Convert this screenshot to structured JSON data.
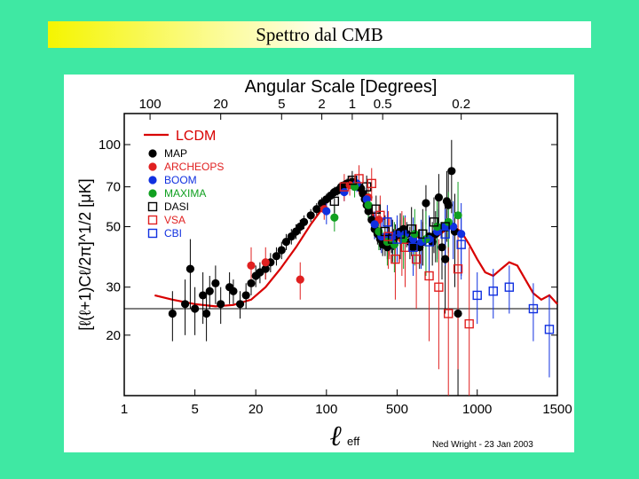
{
  "slide": {
    "title": "Spettro dal CMB"
  },
  "chart_data": {
    "type": "scatter",
    "top_axis_label": "Angular Scale [Degrees]",
    "top_ticks": [
      "100",
      "20",
      "5",
      "2",
      "1",
      "0.5",
      "0.2"
    ],
    "top_tick_l": [
      1.8,
      9,
      36,
      90,
      180,
      360,
      900
    ],
    "ylabel": "[ℓ(ℓ+1)Cℓ/2π]^1/2 [μK]",
    "xlabel_symbol": "ℓ",
    "xlabel_sub": "eff",
    "credit": "Ned Wright - 23 Jan 2003",
    "y_ticks": [
      20,
      30,
      50,
      70,
      100
    ],
    "x_ticks": [
      "1",
      "5",
      "20",
      "100",
      "500",
      "1000",
      "1500"
    ],
    "x_tick_l": [
      1,
      5,
      20,
      100,
      500,
      1000,
      1500
    ],
    "ylim": [
      12,
      130
    ],
    "xlim": [
      1,
      1500
    ],
    "reference_line_y": 25,
    "model": {
      "name": "LCDM",
      "color": "#d80000",
      "points": [
        [
          2,
          28
        ],
        [
          3,
          27
        ],
        [
          5,
          26
        ],
        [
          8,
          25.5
        ],
        [
          12,
          25.8
        ],
        [
          18,
          27
        ],
        [
          25,
          30
        ],
        [
          35,
          35
        ],
        [
          50,
          42
        ],
        [
          70,
          51
        ],
        [
          100,
          61
        ],
        [
          140,
          70
        ],
        [
          180,
          73
        ],
        [
          220,
          71
        ],
        [
          260,
          63
        ],
        [
          300,
          53
        ],
        [
          350,
          45
        ],
        [
          400,
          42
        ],
        [
          450,
          44.5
        ],
        [
          500,
          47
        ],
        [
          550,
          48
        ],
        [
          600,
          47
        ],
        [
          650,
          45
        ],
        [
          700,
          44
        ],
        [
          750,
          46
        ],
        [
          800,
          48.5
        ],
        [
          850,
          50
        ],
        [
          900,
          48
        ],
        [
          950,
          43
        ],
        [
          1000,
          38
        ],
        [
          1050,
          34
        ],
        [
          1100,
          33
        ],
        [
          1150,
          35
        ],
        [
          1200,
          37
        ],
        [
          1250,
          36
        ],
        [
          1300,
          32
        ],
        [
          1350,
          28.5
        ],
        [
          1400,
          27
        ],
        [
          1450,
          28
        ],
        [
          1500,
          26
        ]
      ]
    },
    "series": [
      {
        "name": "MAP",
        "color": "#000000",
        "marker": "circle",
        "points": [
          [
            3,
            24,
            5
          ],
          [
            4,
            26,
            6
          ],
          [
            4.5,
            35,
            10
          ],
          [
            5,
            25,
            5
          ],
          [
            6,
            28,
            6
          ],
          [
            6.5,
            24,
            5
          ],
          [
            7,
            29,
            4
          ],
          [
            8,
            31,
            5
          ],
          [
            9,
            26,
            4
          ],
          [
            11,
            30,
            4
          ],
          [
            12,
            29,
            3
          ],
          [
            14,
            26,
            3
          ],
          [
            16,
            28,
            3
          ],
          [
            18,
            31,
            3
          ],
          [
            20,
            33,
            3
          ],
          [
            22,
            34,
            3
          ],
          [
            25,
            35,
            3
          ],
          [
            28,
            37,
            3
          ],
          [
            32,
            39,
            3
          ],
          [
            36,
            41,
            3
          ],
          [
            40,
            44,
            3
          ],
          [
            45,
            46,
            3
          ],
          [
            50,
            48,
            3
          ],
          [
            55,
            50,
            3
          ],
          [
            60,
            52,
            3
          ],
          [
            70,
            55,
            3
          ],
          [
            80,
            58,
            3
          ],
          [
            90,
            61,
            3
          ],
          [
            100,
            63,
            3
          ],
          [
            110,
            65,
            3
          ],
          [
            120,
            67,
            3
          ],
          [
            130,
            68,
            3
          ],
          [
            140,
            70,
            3
          ],
          [
            150,
            71,
            3
          ],
          [
            160,
            72,
            3
          ],
          [
            170,
            72,
            3
          ],
          [
            180,
            73,
            3
          ],
          [
            190,
            72,
            3
          ],
          [
            200,
            71,
            3
          ],
          [
            210,
            70,
            3
          ],
          [
            220,
            69,
            3
          ],
          [
            230,
            66,
            3
          ],
          [
            240,
            63,
            3
          ],
          [
            250,
            60,
            3
          ],
          [
            260,
            57,
            3
          ],
          [
            280,
            53,
            4
          ],
          [
            300,
            49,
            4
          ],
          [
            320,
            47,
            4
          ],
          [
            340,
            45,
            4
          ],
          [
            360,
            43,
            4
          ],
          [
            380,
            43,
            4
          ],
          [
            400,
            42,
            4
          ],
          [
            420,
            43,
            4
          ],
          [
            440,
            44,
            4
          ],
          [
            460,
            45,
            4
          ],
          [
            480,
            46,
            5
          ],
          [
            500,
            47,
            5
          ],
          [
            520,
            48,
            5
          ],
          [
            540,
            49,
            5
          ],
          [
            560,
            47,
            5
          ],
          [
            580,
            44,
            6
          ],
          [
            600,
            42,
            6
          ],
          [
            620,
            43,
            6
          ],
          [
            640,
            42,
            7
          ],
          [
            660,
            44,
            8
          ],
          [
            680,
            61,
            10
          ],
          [
            700,
            46,
            8
          ],
          [
            720,
            44,
            8
          ],
          [
            740,
            47,
            10
          ],
          [
            760,
            64,
            14
          ],
          [
            780,
            42,
            10
          ],
          [
            800,
            38,
            14
          ],
          [
            810,
            62,
            18
          ],
          [
            820,
            60,
            20
          ],
          [
            840,
            80,
            24
          ],
          [
            860,
            48,
            18
          ],
          [
            880,
            24,
            18
          ]
        ]
      },
      {
        "name": "ARCHEOPS",
        "color": "#e02020",
        "marker": "circle",
        "points": [
          [
            18,
            36,
            6
          ],
          [
            25,
            37,
            5
          ],
          [
            55,
            32,
            5
          ],
          [
            95,
            58,
            5
          ],
          [
            170,
            71,
            6
          ],
          [
            260,
            64,
            6
          ],
          [
            330,
            53,
            7
          ],
          [
            420,
            46,
            8
          ],
          [
            530,
            45,
            12
          ]
        ]
      },
      {
        "name": "BOOM",
        "color": "#1030e0",
        "marker": "circle",
        "points": [
          [
            100,
            57,
            6
          ],
          [
            150,
            67,
            5
          ],
          [
            200,
            72,
            5
          ],
          [
            250,
            63,
            6
          ],
          [
            300,
            51,
            6
          ],
          [
            350,
            46,
            6
          ],
          [
            400,
            46,
            7
          ],
          [
            450,
            46,
            7
          ],
          [
            500,
            47,
            8
          ],
          [
            550,
            47,
            8
          ],
          [
            600,
            45,
            9
          ],
          [
            650,
            44,
            9
          ],
          [
            700,
            45,
            10
          ],
          [
            750,
            48,
            10
          ],
          [
            800,
            50,
            11
          ],
          [
            850,
            50,
            12
          ],
          [
            900,
            47,
            14
          ]
        ]
      },
      {
        "name": "MAXIMA",
        "color": "#10a020",
        "marker": "circle",
        "points": [
          [
            120,
            54,
            6
          ],
          [
            190,
            70,
            6
          ],
          [
            260,
            60,
            7
          ],
          [
            330,
            48,
            7
          ],
          [
            400,
            44,
            8
          ],
          [
            470,
            43,
            9
          ],
          [
            540,
            45,
            10
          ],
          [
            610,
            47,
            11
          ],
          [
            680,
            45,
            12
          ],
          [
            750,
            50,
            13
          ],
          [
            820,
            52,
            15
          ],
          [
            880,
            55,
            18
          ]
        ]
      },
      {
        "name": "DASI",
        "color": "#000000",
        "marker": "square",
        "points": [
          [
            120,
            62,
            6
          ],
          [
            180,
            74,
            6
          ],
          [
            250,
            70,
            7
          ],
          [
            310,
            58,
            7
          ],
          [
            380,
            48,
            7
          ],
          [
            450,
            45,
            8
          ],
          [
            520,
            47,
            9
          ],
          [
            590,
            49,
            10
          ],
          [
            660,
            47,
            11
          ],
          [
            730,
            52,
            12
          ],
          [
            800,
            50,
            14
          ]
        ]
      },
      {
        "name": "VSA",
        "color": "#e02020",
        "marker": "square",
        "points": [
          [
            150,
            70,
            8
          ],
          [
            210,
            75,
            9
          ],
          [
            280,
            72,
            10
          ],
          [
            340,
            55,
            10
          ],
          [
            410,
            46,
            11
          ],
          [
            480,
            38,
            11
          ],
          [
            550,
            42,
            12
          ],
          [
            620,
            38,
            13
          ],
          [
            700,
            33,
            14
          ],
          [
            760,
            30,
            15
          ],
          [
            820,
            24,
            18
          ],
          [
            880,
            35,
            20
          ],
          [
            950,
            22,
            20
          ]
        ]
      },
      {
        "name": "CBI",
        "color": "#1030e0",
        "marker": "square",
        "points": [
          [
            400,
            52,
            8
          ],
          [
            500,
            45,
            8
          ],
          [
            600,
            42,
            9
          ],
          [
            700,
            44,
            10
          ],
          [
            800,
            47,
            11
          ],
          [
            900,
            43,
            11
          ],
          [
            1000,
            28,
            6
          ],
          [
            1100,
            29,
            6
          ],
          [
            1200,
            30,
            6
          ],
          [
            1350,
            25,
            6
          ],
          [
            1450,
            21,
            7
          ]
        ]
      }
    ]
  }
}
